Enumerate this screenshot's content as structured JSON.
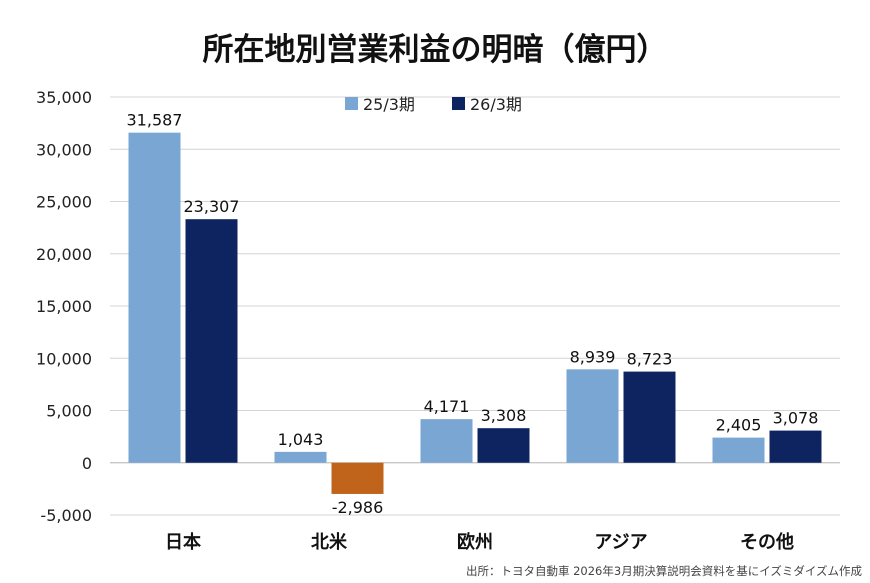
{
  "chart_data": {
    "type": "bar",
    "title": "所在地別営業利益の明暗（億円）",
    "categories": [
      "日本",
      "北米",
      "欧州",
      "アジア",
      "その他"
    ],
    "series": [
      {
        "name": "25/3期",
        "values": [
          31587,
          1043,
          4171,
          8939,
          2405
        ]
      },
      {
        "name": "26/3期",
        "values": [
          23307,
          -2986,
          3308,
          8723,
          3078
        ]
      }
    ],
    "data_labels": [
      [
        "31,587",
        "1,043",
        "4,171",
        "8,939",
        "2,405"
      ],
      [
        "23,307",
        "-2,986",
        "3,308",
        "8,723",
        "3,078"
      ]
    ],
    "ylim": [
      -5000,
      35000
    ],
    "yticks": [
      35000,
      30000,
      25000,
      20000,
      15000,
      10000,
      5000,
      0,
      -5000
    ],
    "ytick_labels": [
      "35,000",
      "30,000",
      "25,000",
      "20,000",
      "15,000",
      "10,000",
      "5,000",
      "0",
      "-5,000"
    ],
    "grid": true,
    "legend_position": "top-center",
    "colors": {
      "series_1": "#7aa6d4",
      "series_2": "#0d2461",
      "negative": "#c0641c",
      "negative_label": "#b5651d",
      "grid": "#d4d4d4"
    },
    "source": "出所：トヨタ自動車 2026年3月期決算説明会資料を基にイズミダイズム作成"
  }
}
